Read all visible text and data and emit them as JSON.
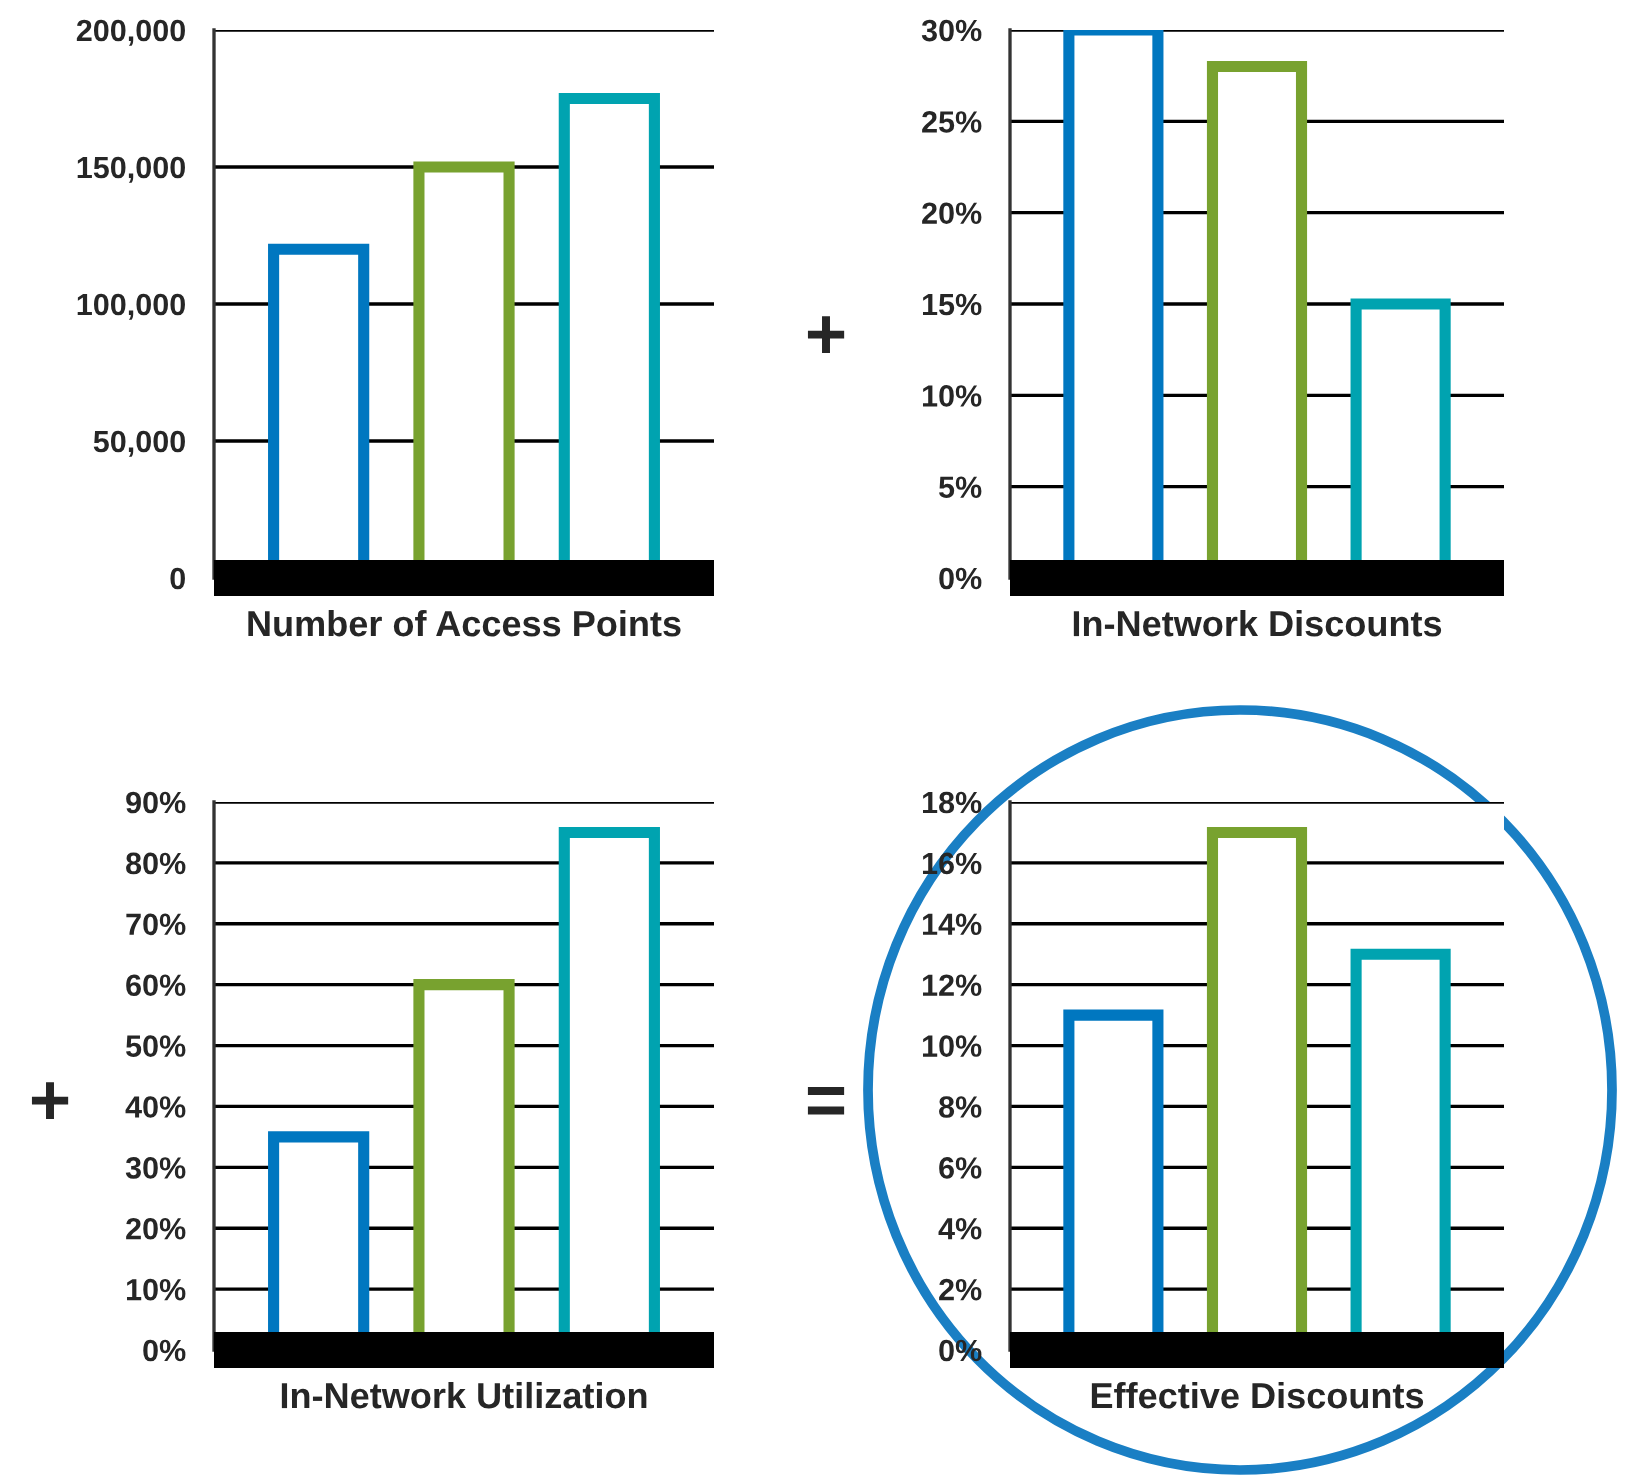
{
  "chart_data": [
    {
      "type": "bar",
      "xlabel": "Number of Access Points",
      "categories": [
        null,
        null,
        null
      ],
      "values": [
        120000,
        150000,
        175000
      ],
      "colors": [
        "#0077c0",
        "#78a22f",
        "#00a3b0"
      ],
      "ylim": [
        0,
        200000
      ],
      "yticks": [
        0,
        {
          "value": 50000,
          "label": "50,000"
        },
        {
          "value": 100000,
          "label": "100,000"
        },
        {
          "value": 150000,
          "label": "150,000"
        },
        {
          "value": 200000,
          "label": "200,000"
        }
      ],
      "grid": "y"
    },
    {
      "type": "bar",
      "xlabel": "In-Network Discounts",
      "categories": [
        null,
        null,
        null
      ],
      "values": [
        30,
        28,
        15
      ],
      "colors": [
        "#0077c0",
        "#78a22f",
        "#00a3b0"
      ],
      "ylim": [
        0,
        30
      ],
      "yticks": [
        {
          "value": 0,
          "label": "0%"
        },
        {
          "value": 5,
          "label": "5%"
        },
        {
          "value": 10,
          "label": "10%"
        },
        {
          "value": 15,
          "label": "15%"
        },
        {
          "value": 20,
          "label": "20%"
        },
        {
          "value": 25,
          "label": "25%"
        },
        {
          "value": 30,
          "label": "30%"
        }
      ],
      "grid": "y",
      "annotations": [
        "+"
      ]
    },
    {
      "type": "bar",
      "xlabel": "In-Network Utilization",
      "categories": [
        null,
        null,
        null
      ],
      "values": [
        35,
        60,
        85
      ],
      "colors": [
        "#0077c0",
        "#78a22f",
        "#00a3b0"
      ],
      "ylim": [
        0,
        90
      ],
      "yticks": [
        {
          "value": 0,
          "label": "0%"
        },
        {
          "value": 10,
          "label": "10%"
        },
        {
          "value": 20,
          "label": "20%"
        },
        {
          "value": 30,
          "label": "30%"
        },
        {
          "value": 40,
          "label": "40%"
        },
        {
          "value": 50,
          "label": "50%"
        },
        {
          "value": 60,
          "label": "60%"
        },
        {
          "value": 70,
          "label": "70%"
        },
        {
          "value": 80,
          "label": "80%"
        },
        {
          "value": 90,
          "label": "90%"
        }
      ],
      "grid": "y",
      "annotations": [
        "+"
      ]
    },
    {
      "type": "bar",
      "xlabel": "Effective Discounts",
      "categories": [
        null,
        null,
        null
      ],
      "values": [
        11,
        17,
        13
      ],
      "colors": [
        "#0077c0",
        "#78a22f",
        "#00a3b0"
      ],
      "ylim": [
        0,
        18
      ],
      "yticks": [
        {
          "value": 0,
          "label": "0%"
        },
        {
          "value": 2,
          "label": "2%"
        },
        {
          "value": 4,
          "label": "4%"
        },
        {
          "value": 6,
          "label": "6%"
        },
        {
          "value": 8,
          "label": "8%"
        },
        {
          "value": 10,
          "label": "10%"
        },
        {
          "value": 12,
          "label": "12%"
        },
        {
          "value": 14,
          "label": "14%"
        },
        {
          "value": 16,
          "label": "16%"
        },
        {
          "value": 18,
          "label": "18%"
        }
      ],
      "grid": "y",
      "annotations": [
        "="
      ]
    }
  ]
}
